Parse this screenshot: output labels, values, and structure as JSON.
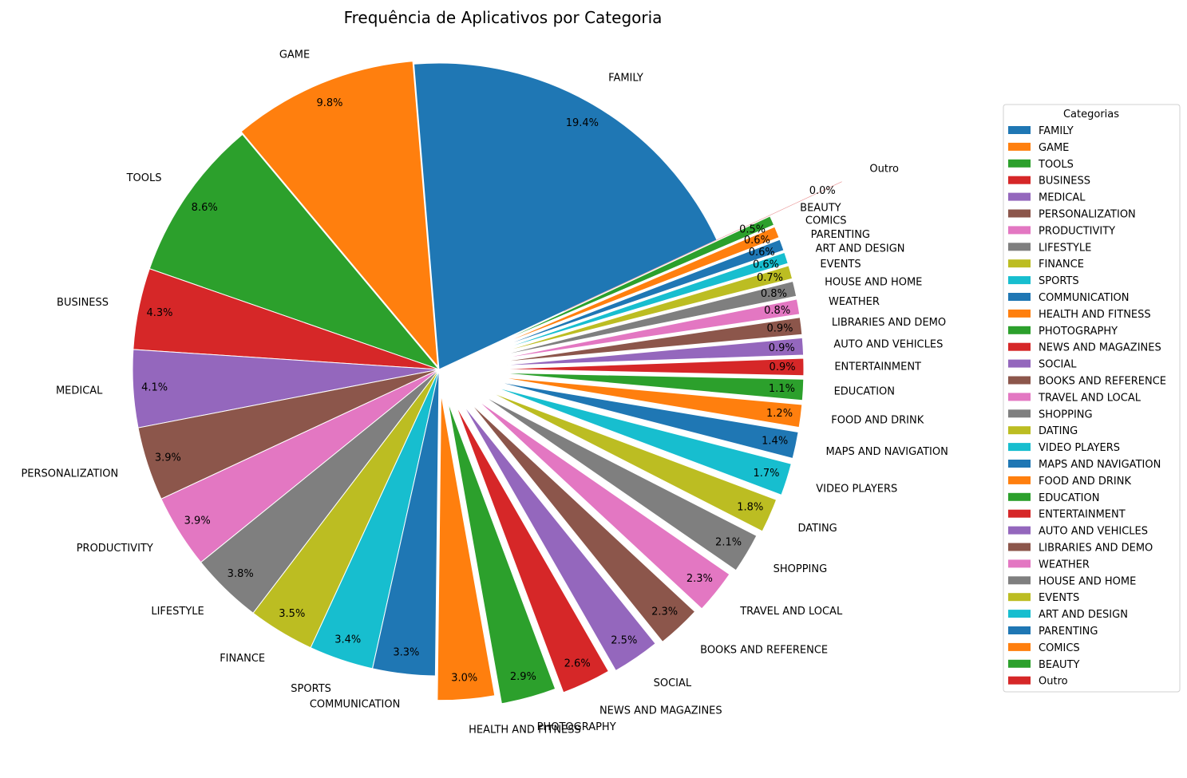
{
  "chart_data": {
    "type": "pie",
    "title": "Frequência de Aplicativos por Categoria",
    "legend_title": "Categorias",
    "legend_position": "right",
    "start_angle_deg": 25,
    "direction": "counterclockwise",
    "slices": [
      {
        "label": "FAMILY",
        "value": 19.4,
        "pct_label": "19.4%",
        "color": "#1f77b4",
        "explode": 0.0
      },
      {
        "label": "GAME",
        "value": 9.8,
        "pct_label": "9.8%",
        "color": "#ff7f0e",
        "explode": 0.01
      },
      {
        "label": "TOOLS",
        "value": 8.6,
        "pct_label": "8.6%",
        "color": "#2ca02c",
        "explode": 0.0
      },
      {
        "label": "BUSINESS",
        "value": 4.3,
        "pct_label": "4.3%",
        "color": "#d62728",
        "explode": 0.0
      },
      {
        "label": "MEDICAL",
        "value": 4.1,
        "pct_label": "4.1%",
        "color": "#9467bd",
        "explode": 0.0
      },
      {
        "label": "PERSONALIZATION",
        "value": 3.9,
        "pct_label": "3.9%",
        "color": "#8c564b",
        "explode": 0.0
      },
      {
        "label": "PRODUCTIVITY",
        "value": 3.9,
        "pct_label": "3.9%",
        "color": "#e377c2",
        "explode": 0.0
      },
      {
        "label": "LIFESTYLE",
        "value": 3.8,
        "pct_label": "3.8%",
        "color": "#7f7f7f",
        "explode": 0.0
      },
      {
        "label": "FINANCE",
        "value": 3.5,
        "pct_label": "3.5%",
        "color": "#bcbd22",
        "explode": 0.0
      },
      {
        "label": "SPORTS",
        "value": 3.4,
        "pct_label": "3.4%",
        "color": "#17becf",
        "explode": 0.0
      },
      {
        "label": "COMMUNICATION",
        "value": 3.3,
        "pct_label": "3.3%",
        "color": "#1f77b4",
        "explode": 0.0
      },
      {
        "label": "HEALTH AND FITNESS",
        "value": 3.0,
        "pct_label": "3.0%",
        "color": "#ff7f0e",
        "explode": 0.08
      },
      {
        "label": "PHOTOGRAPHY",
        "value": 2.9,
        "pct_label": "2.9%",
        "color": "#2ca02c",
        "explode": 0.11
      },
      {
        "label": "NEWS AND MAGAZINES",
        "value": 2.6,
        "pct_label": "2.6%",
        "color": "#d62728",
        "explode": 0.13
      },
      {
        "label": "SOCIAL",
        "value": 2.5,
        "pct_label": "2.5%",
        "color": "#9467bd",
        "explode": 0.14
      },
      {
        "label": "BOOKS AND REFERENCE",
        "value": 2.3,
        "pct_label": "2.3%",
        "color": "#8c564b",
        "explode": 0.15
      },
      {
        "label": "TRAVEL AND LOCAL",
        "value": 2.3,
        "pct_label": "2.3%",
        "color": "#e377c2",
        "explode": 0.16
      },
      {
        "label": "SHOPPING",
        "value": 2.1,
        "pct_label": "2.1%",
        "color": "#7f7f7f",
        "explode": 0.17
      },
      {
        "label": "DATING",
        "value": 1.8,
        "pct_label": "1.8%",
        "color": "#bcbd22",
        "explode": 0.18
      },
      {
        "label": "VIDEO PLAYERS",
        "value": 1.7,
        "pct_label": "1.7%",
        "color": "#17becf",
        "explode": 0.19
      },
      {
        "label": "MAPS AND NAVIGATION",
        "value": 1.4,
        "pct_label": "1.4%",
        "color": "#1f77b4",
        "explode": 0.19
      },
      {
        "label": "FOOD AND DRINK",
        "value": 1.2,
        "pct_label": "1.2%",
        "color": "#ff7f0e",
        "explode": 0.19
      },
      {
        "label": "EDUCATION",
        "value": 1.1,
        "pct_label": "1.1%",
        "color": "#2ca02c",
        "explode": 0.19
      },
      {
        "label": "ENTERTAINMENT",
        "value": 0.9,
        "pct_label": "0.9%",
        "color": "#d62728",
        "explode": 0.19
      },
      {
        "label": "AUTO AND VEHICLES",
        "value": 0.9,
        "pct_label": "0.9%",
        "color": "#9467bd",
        "explode": 0.19
      },
      {
        "label": "LIBRARIES AND DEMO",
        "value": 0.9,
        "pct_label": "0.9%",
        "color": "#8c564b",
        "explode": 0.19
      },
      {
        "label": "WEATHER",
        "value": 0.8,
        "pct_label": "0.8%",
        "color": "#e377c2",
        "explode": 0.19
      },
      {
        "label": "HOUSE AND HOME",
        "value": 0.8,
        "pct_label": "0.8%",
        "color": "#7f7f7f",
        "explode": 0.19
      },
      {
        "label": "EVENTS",
        "value": 0.7,
        "pct_label": "0.7%",
        "color": "#bcbd22",
        "explode": 0.19
      },
      {
        "label": "ART AND DESIGN",
        "value": 0.6,
        "pct_label": "0.6%",
        "color": "#17becf",
        "explode": 0.19
      },
      {
        "label": "PARENTING",
        "value": 0.6,
        "pct_label": "0.6%",
        "color": "#1f77b4",
        "explode": 0.19
      },
      {
        "label": "COMICS",
        "value": 0.6,
        "pct_label": "0.6%",
        "color": "#ff7f0e",
        "explode": 0.19
      },
      {
        "label": "BEAUTY",
        "value": 0.5,
        "pct_label": "0.5%",
        "color": "#2ca02c",
        "explode": 0.19
      },
      {
        "label": "Outro",
        "value": 0.0,
        "pct_label": "0.0%",
        "color": "#d62728",
        "explode": 0.45
      }
    ]
  }
}
